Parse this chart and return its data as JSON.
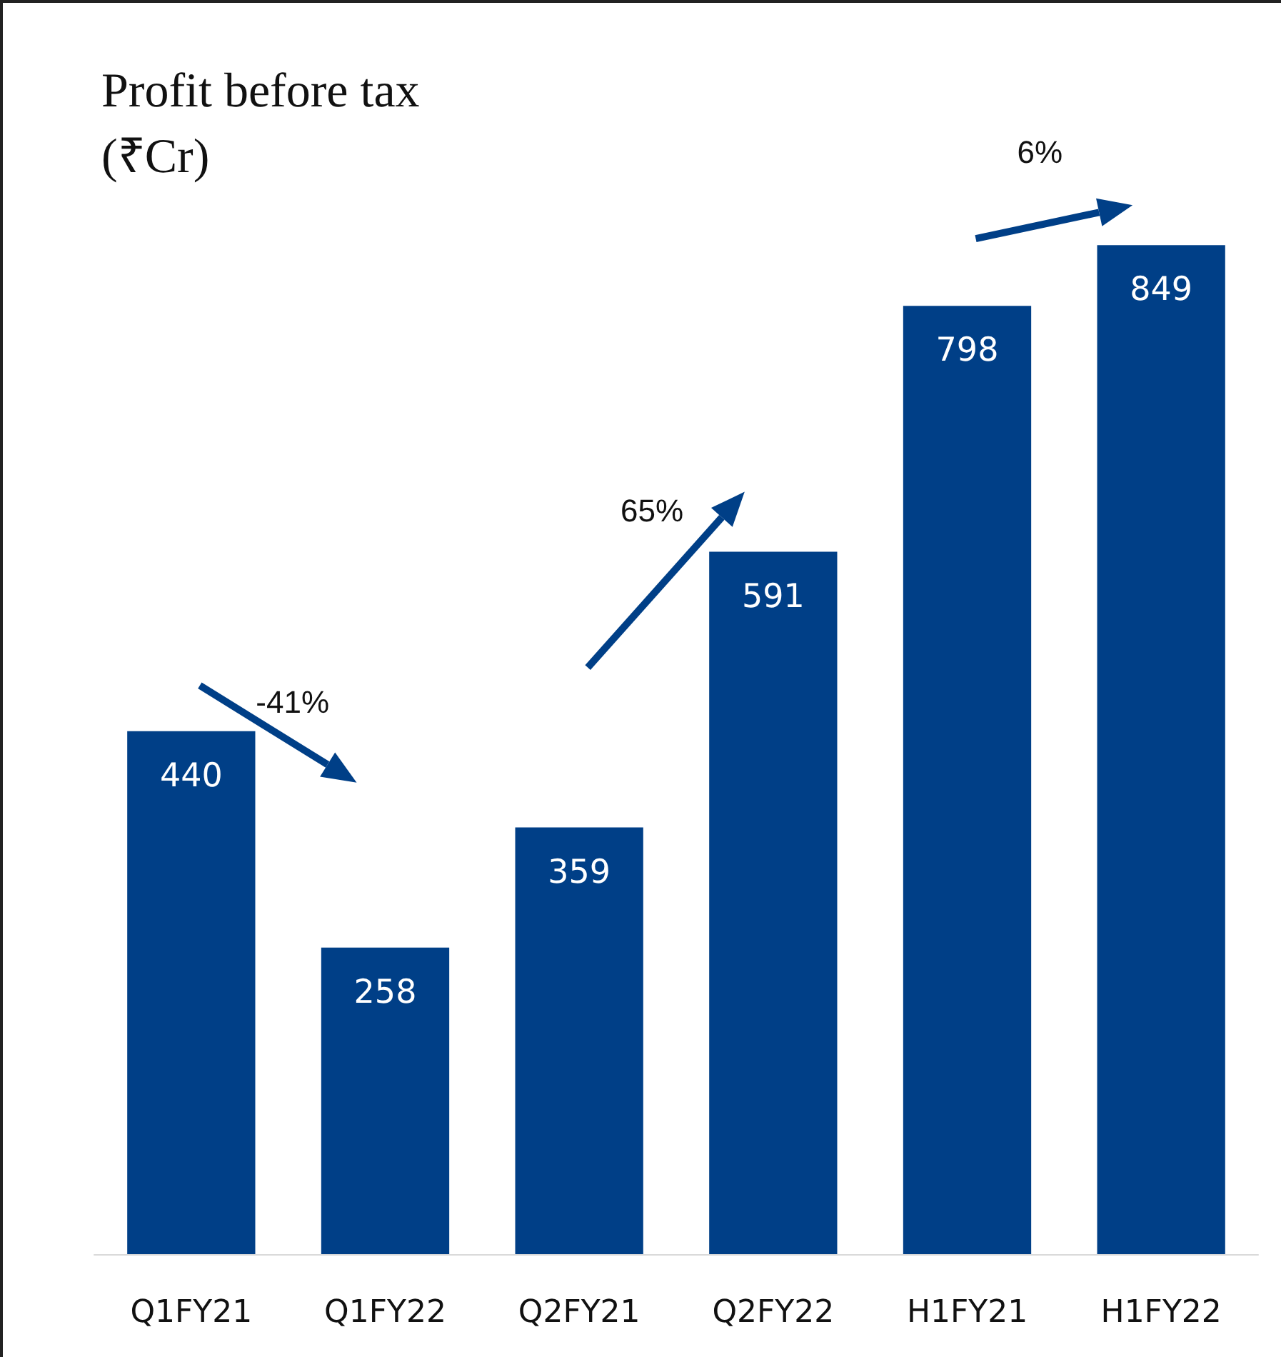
{
  "chart_data": {
    "type": "bar",
    "title": "Profit before tax\n(₹Cr)",
    "categories": [
      "Q1FY21",
      "Q1FY22",
      "Q2FY21",
      "Q2FY22",
      "H1FY21",
      "H1FY22"
    ],
    "values": [
      440,
      258,
      359,
      591,
      798,
      849
    ],
    "color": "#003f87",
    "data_labels": true,
    "annotations": [
      "-41%",
      "65%",
      "6%"
    ]
  }
}
